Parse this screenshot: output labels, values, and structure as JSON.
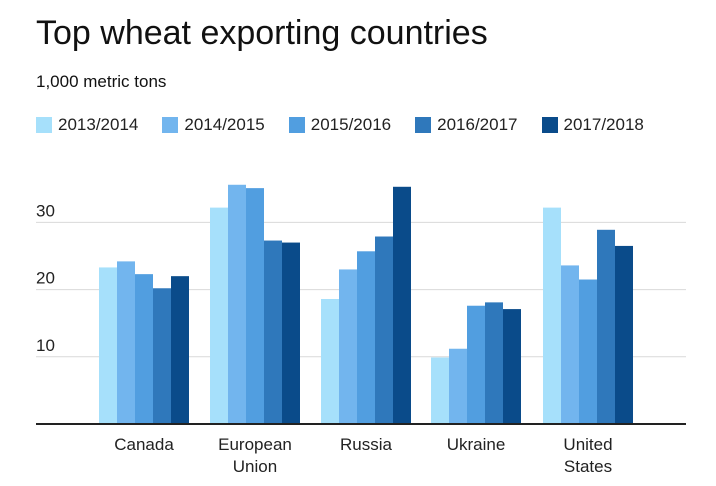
{
  "chart_data": {
    "type": "bar",
    "title": "Top wheat exporting countries",
    "subtitle": "1,000 metric tons",
    "categories": [
      "Canada",
      "European Union",
      "Russia",
      "Ukraine",
      "United States"
    ],
    "category_lines": [
      [
        "Canada"
      ],
      [
        "European",
        "Union"
      ],
      [
        "Russia"
      ],
      [
        "Ukraine"
      ],
      [
        "United",
        "States"
      ]
    ],
    "series": [
      {
        "name": "2013/2014",
        "color": "#a6e0fb",
        "values": [
          23.3,
          32.2,
          18.6,
          9.9,
          32.2
        ]
      },
      {
        "name": "2014/2015",
        "color": "#72b5ee",
        "values": [
          24.2,
          35.6,
          23.0,
          11.2,
          23.6
        ]
      },
      {
        "name": "2015/2016",
        "color": "#519ee0",
        "values": [
          22.3,
          35.1,
          25.7,
          17.6,
          21.5
        ]
      },
      {
        "name": "2016/2017",
        "color": "#2f78bb",
        "values": [
          20.2,
          27.3,
          27.9,
          18.1,
          28.9
        ]
      },
      {
        "name": "2017/2018",
        "color": "#0a4b8a",
        "values": [
          22.0,
          27.0,
          35.3,
          17.1,
          26.5
        ]
      }
    ],
    "yticks": [
      10,
      20,
      30
    ],
    "ylim": [
      0,
      37
    ],
    "xlabel": "",
    "ylabel": "",
    "grid": true,
    "legend_position": "top-left"
  }
}
